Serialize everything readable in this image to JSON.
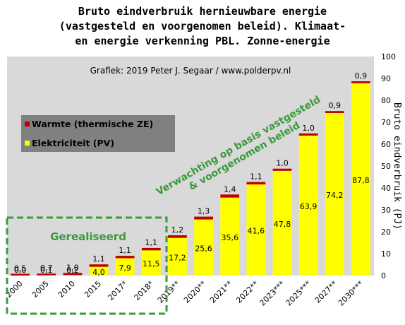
{
  "title_lines": [
    "Bruto eindverbruik hernieuwbare energie",
    "(vastgesteld en voorgenomen beleid). Klimaat-",
    "en energie verkenning PBL. Zonne-energie"
  ],
  "credit": "Grafiek: 2019 Peter J. Segaar / www.polderpv.nl",
  "realized_label": "Gerealiseerd",
  "expectation_label_lines": [
    "Verwachting op basis vastgesteld",
    "& voorgenomen beleid"
  ],
  "colors": {
    "plot_bg": "#d9d9d9",
    "electricity": "#ffff00",
    "heat": "#c00000",
    "legend_bg": "#808080",
    "realized_box": "#3a9a3a",
    "expectation_text": "#3a9a3a"
  },
  "chart_data": {
    "type": "bar",
    "stacked": true,
    "categories": [
      "2000",
      "2005",
      "2010",
      "2015",
      "2017*",
      "2018*",
      "2019**",
      "2020**",
      "2021**",
      "2022**",
      "2023***",
      "2025***",
      "2027**",
      "2030***"
    ],
    "series": [
      {
        "name": "Elektriciteit (PV)",
        "color": "#ffff00",
        "values": [
          0.0,
          0.1,
          0.2,
          4.0,
          7.9,
          11.5,
          17.2,
          25.6,
          35.6,
          41.6,
          47.8,
          63.9,
          74.2,
          87.8
        ]
      },
      {
        "name": "Warmte (thermische ZE)",
        "color": "#c00000",
        "values": [
          0.5,
          0.7,
          1.0,
          1.1,
          1.1,
          1.1,
          1.2,
          1.3,
          1.4,
          1.1,
          1.0,
          1.0,
          0.9,
          0.9
        ]
      }
    ],
    "value_labels_bottom": [
      "0,0",
      "0,1",
      "0,2",
      "4,0",
      "7,9",
      "11,5",
      "17,2",
      "25,6",
      "35,6",
      "41,6",
      "47,8",
      "63,9",
      "74,2",
      "87,8"
    ],
    "value_labels_top": [
      "0,5",
      "0,7",
      "1,0",
      "1,1",
      "1,1",
      "1,1",
      "1,2",
      "1,3",
      "1,4",
      "1,1",
      "1,0",
      "1,0",
      "0,9",
      "0,9"
    ],
    "ylabel": "Bruto eindverbruik (PJ)",
    "ylim": [
      0,
      100
    ],
    "yticks": [
      "0",
      "10",
      "20",
      "30",
      "40",
      "50",
      "60",
      "70",
      "80",
      "90",
      "100"
    ],
    "grid": false,
    "legend_position": "upper-left"
  }
}
